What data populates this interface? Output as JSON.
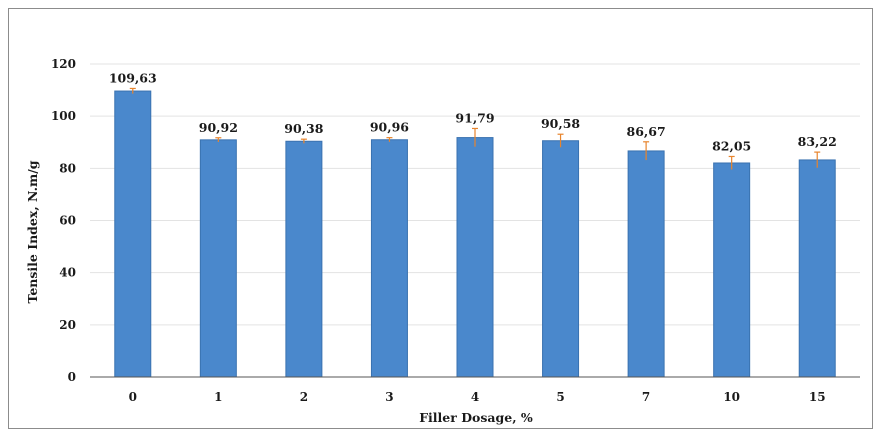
{
  "chart_data": {
    "type": "bar",
    "categories": [
      "0",
      "1",
      "2",
      "3",
      "4",
      "5",
      "7",
      "10",
      "15"
    ],
    "values": [
      109.63,
      90.92,
      90.38,
      90.96,
      91.79,
      90.58,
      86.67,
      82.05,
      83.22
    ],
    "value_labels": [
      "109,63",
      "90,92",
      "90,38",
      "90,96",
      "91,79",
      "90,58",
      "86,67",
      "82,05",
      "83,22"
    ],
    "errors": [
      1.0,
      0.8,
      0.8,
      0.8,
      3.5,
      2.5,
      3.5,
      2.5,
      3.0
    ],
    "xlabel": "Filler Dosage, %",
    "ylabel": "Tensile Index, N.m/g",
    "ylim": [
      0,
      120
    ],
    "yticks": [
      "0",
      "20",
      "40",
      "60",
      "80",
      "100",
      "120"
    ],
    "grid": true,
    "colors": {
      "bar": "#4a88cc",
      "bar_edge": "#3a72b0",
      "error": "#e8842c",
      "grid": "#e3e3e3",
      "axis": "#555555"
    }
  }
}
